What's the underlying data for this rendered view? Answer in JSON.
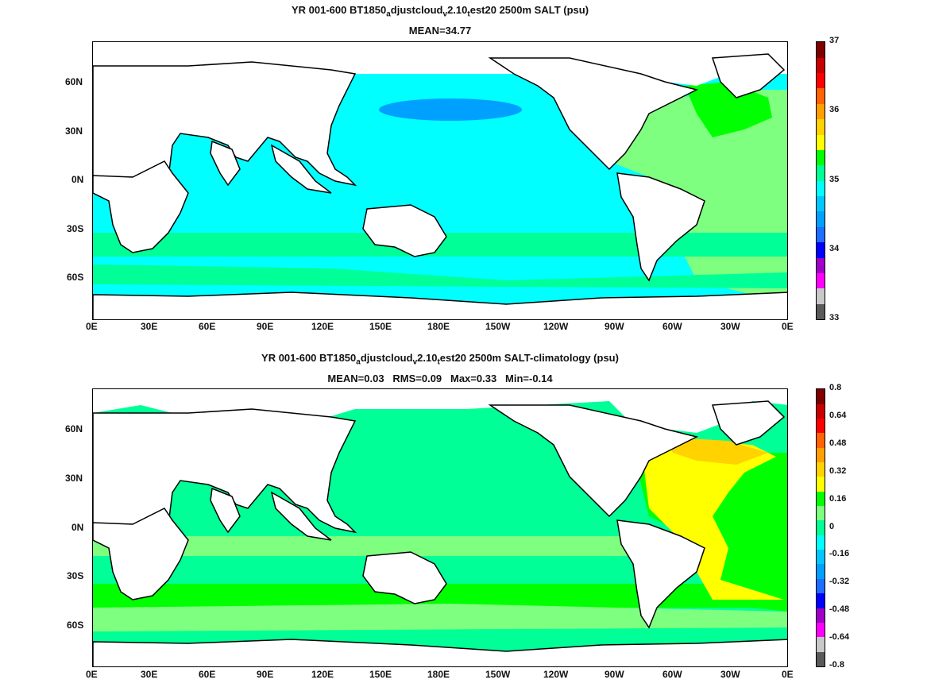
{
  "top": {
    "title_parts": [
      "YR 001-600 BT1850",
      "a",
      "djustcloud",
      "v",
      "2.10",
      "t",
      "est20 2500m SALT (psu)"
    ],
    "subtitle": "MEAN=34.77",
    "colorbar": {
      "colors": [
        "#5a5a5a",
        "#c8c8c8",
        "#ff00ff",
        "#a000c8",
        "#0000ff",
        "#1e6eff",
        "#00a0ff",
        "#00c8ff",
        "#00ffff",
        "#00ff96",
        "#00ff00",
        "#ffff00",
        "#ffd200",
        "#ffa000",
        "#ff6400",
        "#ff0000",
        "#c80000",
        "#800000"
      ],
      "ticks": [
        "37",
        "36",
        "35",
        "34",
        "33"
      ],
      "fill": {
        "ocean": "#00ffff",
        "atlantic": "#7fff7f",
        "south": "#00ff96",
        "nh_atlantic": "#00ff00",
        "pac_min": "#00a0ff"
      }
    }
  },
  "bottom": {
    "title_parts": [
      "YR 001-600 BT1850",
      "a",
      "djustcloud",
      "v",
      "2.10",
      "t",
      "est20 2500m SALT-climatology (psu)"
    ],
    "subtitle": "MEAN=0.03   RMS=0.09   Max=0.33   Min=-0.14",
    "colorbar": {
      "colors": [
        "#5a5a5a",
        "#c8c8c8",
        "#ff00ff",
        "#a000c8",
        "#0000ff",
        "#1e6eff",
        "#00a0ff",
        "#00c8ff",
        "#00ffff",
        "#00ff96",
        "#7fff7f",
        "#00ff00",
        "#ffff00",
        "#ffd200",
        "#ffa000",
        "#ff6400",
        "#ff0000",
        "#c80000",
        "#800000"
      ],
      "ticks": [
        "0.8",
        "0.64",
        "0.48",
        "0.32",
        "0.16",
        "0",
        "-0.16",
        "-0.32",
        "-0.48",
        "-0.64",
        "-0.8"
      ],
      "fill": {
        "ocean": "#00ff96",
        "atlantic": "#00ff00",
        "yellow": "#ffff00",
        "orange": "#ffd200",
        "south": "#7fff7f"
      }
    }
  },
  "axes": {
    "lat_ticks": [
      "60N",
      "30N",
      "0N",
      "30S",
      "60S"
    ],
    "lon_ticks": [
      "0E",
      "30E",
      "60E",
      "90E",
      "120E",
      "150E",
      "180E",
      "150W",
      "120W",
      "90W",
      "60W",
      "30W",
      "0E"
    ]
  }
}
